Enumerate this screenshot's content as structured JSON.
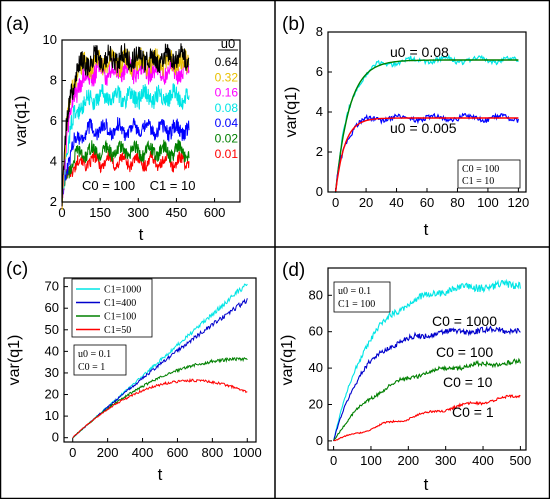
{
  "chart_data": [
    {
      "type": "line",
      "panel_label": "(a)",
      "xlabel": "t",
      "ylabel": "var(q1)",
      "xlim": [
        0,
        700
      ],
      "ylim": [
        2,
        10
      ],
      "xticks": [
        0,
        150,
        300,
        450,
        600
      ],
      "yticks": [
        2,
        4,
        6,
        8,
        10
      ],
      "legend_title": "u0",
      "legend_position": "right",
      "annotation": "C0 = 100    C1 = 10",
      "grid": false,
      "series": [
        {
          "name": "0.64",
          "color": "#000000",
          "plateau": 9.1,
          "tau": 25
        },
        {
          "name": "0.32",
          "color": "#e8c000",
          "plateau": 8.9,
          "tau": 25
        },
        {
          "name": "0.16",
          "color": "#ff00ff",
          "plateau": 8.5,
          "tau": 30
        },
        {
          "name": "0.08",
          "color": "#00e5e5",
          "plateau": 7.2,
          "tau": 30
        },
        {
          "name": "0.04",
          "color": "#0000ff",
          "plateau": 5.6,
          "tau": 30
        },
        {
          "name": "0.02",
          "color": "#008000",
          "plateau": 4.5,
          "tau": 25
        },
        {
          "name": "0.01",
          "color": "#ff0000",
          "plateau": 4.0,
          "tau": 20
        }
      ]
    },
    {
      "type": "line",
      "panel_label": "(b)",
      "xlabel": "t",
      "ylabel": "var(q1)",
      "xlim": [
        -5,
        125
      ],
      "ylim": [
        0,
        8
      ],
      "xticks": [
        0,
        20,
        40,
        60,
        80,
        100,
        120
      ],
      "yticks": [
        0,
        2,
        4,
        6,
        8
      ],
      "annotation_lines": [
        "C0 = 100",
        "C1 = 10"
      ],
      "grid": false,
      "series": [
        {
          "name": "u0 = 0.08",
          "color": "#00e5e5",
          "plateau": 6.6,
          "tau": 9
        },
        {
          "name": "fit-0.08",
          "color": "#008000",
          "plateau": 6.6,
          "tau": 9
        },
        {
          "name": "u0 = 0.005",
          "color": "#0000ff",
          "plateau": 3.7,
          "tau": 6
        },
        {
          "name": "fit-0.005",
          "color": "#ff0000",
          "plateau": 3.7,
          "tau": 6
        }
      ],
      "labels": [
        "u0 = 0.08",
        "u0 = 0.005"
      ]
    },
    {
      "type": "line",
      "panel_label": "(c)",
      "xlabel": "t",
      "ylabel": "var(q1)",
      "xlim": [
        -50,
        1050
      ],
      "ylim": [
        -2,
        74
      ],
      "xticks": [
        0,
        200,
        400,
        600,
        800,
        1000
      ],
      "yticks": [
        0,
        10,
        20,
        30,
        40,
        50,
        60,
        70
      ],
      "legend_position": "top-left",
      "annotation_lines": [
        "u0 = 0.1",
        "C0 = 1"
      ],
      "grid": false,
      "series": [
        {
          "name": "C1=1000",
          "color": "#00e5e5",
          "a": 0.0715,
          "b": 0.0
        },
        {
          "name": "C1=400",
          "color": "#0000cc",
          "a": 0.072,
          "b": 8.1e-06
        },
        {
          "name": "C1=100",
          "color": "#008000",
          "a": 0.075,
          "b": 3.85e-05
        },
        {
          "name": "C1=50",
          "color": "#ff0000",
          "a": 0.077,
          "b": 5.6e-05
        }
      ]
    },
    {
      "type": "line",
      "panel_label": "(d)",
      "xlabel": "t",
      "ylabel": "var(q1)",
      "xlim": [
        -15,
        515
      ],
      "ylim": [
        -5,
        95
      ],
      "xticks": [
        0,
        100,
        200,
        300,
        400,
        500
      ],
      "yticks": [
        0,
        20,
        40,
        60,
        80
      ],
      "annotation_lines": [
        "u0 = 0.1",
        "C1 = 100"
      ],
      "grid": false,
      "series": [
        {
          "name": "C0 = 1000",
          "color": "#00e5e5",
          "plateau": 86,
          "tau": 95
        },
        {
          "name": "C0 = 100",
          "color": "#0000cc",
          "plateau": 61,
          "tau": 80
        },
        {
          "name": "C0 = 10",
          "color": "#008000",
          "plateau": 44,
          "tau": 130
        },
        {
          "name": "C0 = 1",
          "color": "#ff0000",
          "plateau": 42,
          "tau": 560
        }
      ],
      "labels": [
        "C0 = 1000",
        "C0 = 100",
        "C0 = 10",
        "C0 = 1"
      ]
    }
  ]
}
